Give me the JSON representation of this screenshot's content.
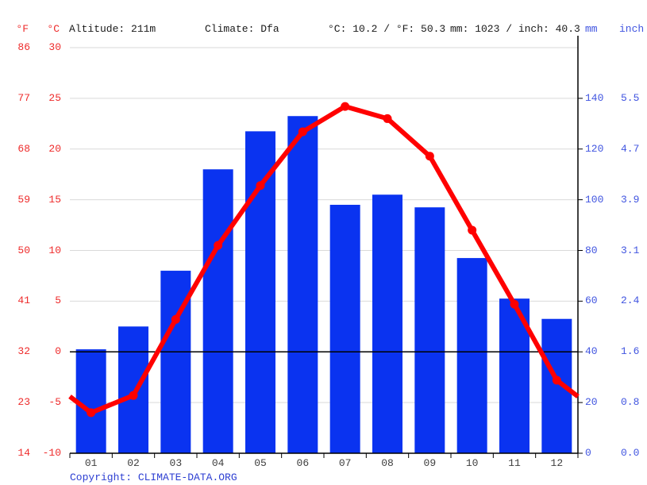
{
  "header": {
    "left_unit_f": "°F",
    "left_unit_c": "°C",
    "altitude": "Altitude: 211m",
    "climate": "Climate: Dfa",
    "avg_temp": "°C: 10.2 / °F: 50.3",
    "total_precip": "mm: 1023 / inch: 40.3",
    "right_unit_mm": "mm",
    "right_unit_inch": "inch"
  },
  "footer": {
    "copyright_label": "Copyright: ",
    "copyright_link": "CLIMATE-DATA.ORG"
  },
  "colors": {
    "bar_blue": "#0a33f0",
    "line_red": "#ff0000",
    "axis_text_red": "#ee2b2b",
    "axis_text_blue": "#4155e0",
    "copyright_blue": "#2c3ed2",
    "grid_gray": "#d9d9d9",
    "axis_black": "#000000",
    "month_text": "#3f3f3f"
  },
  "chart_data": {
    "type": "bar",
    "subtype": "climograph (precipitation bars + temperature line)",
    "categories": [
      "01",
      "02",
      "03",
      "04",
      "05",
      "06",
      "07",
      "08",
      "09",
      "10",
      "11",
      "12"
    ],
    "series": [
      {
        "name": "precipitation_mm",
        "type": "bar",
        "values": [
          41,
          50,
          72,
          112,
          127,
          133,
          98,
          102,
          97,
          77,
          61,
          53
        ]
      },
      {
        "name": "temperature_c",
        "type": "line",
        "values": [
          -6.0,
          -4.3,
          3.2,
          10.5,
          16.4,
          21.7,
          24.2,
          23.0,
          19.3,
          12.0,
          4.7,
          -2.8
        ]
      }
    ],
    "title": "",
    "xlabel": "",
    "ylabel_left": "°F / °C",
    "ylabel_right": "mm / inch",
    "axis_left_f": [
      86,
      77,
      68,
      59,
      50,
      41,
      32,
      23,
      14
    ],
    "axis_left_c": [
      30,
      25,
      20,
      15,
      10,
      5,
      0,
      -5,
      -10
    ],
    "axis_right_mm": [
      "140",
      "120",
      "100",
      "80",
      "60",
      "40",
      "20",
      "0"
    ],
    "axis_right_inch": [
      "5.5",
      "4.7",
      "3.9",
      "3.1",
      "2.4",
      "1.6",
      "0.8",
      "0.0"
    ],
    "temp_axis_range_c": [
      -10,
      30
    ],
    "precip_axis_range_mm": [
      0,
      160
    ],
    "grid": true,
    "zero_line_c": 0,
    "legend": "none"
  }
}
